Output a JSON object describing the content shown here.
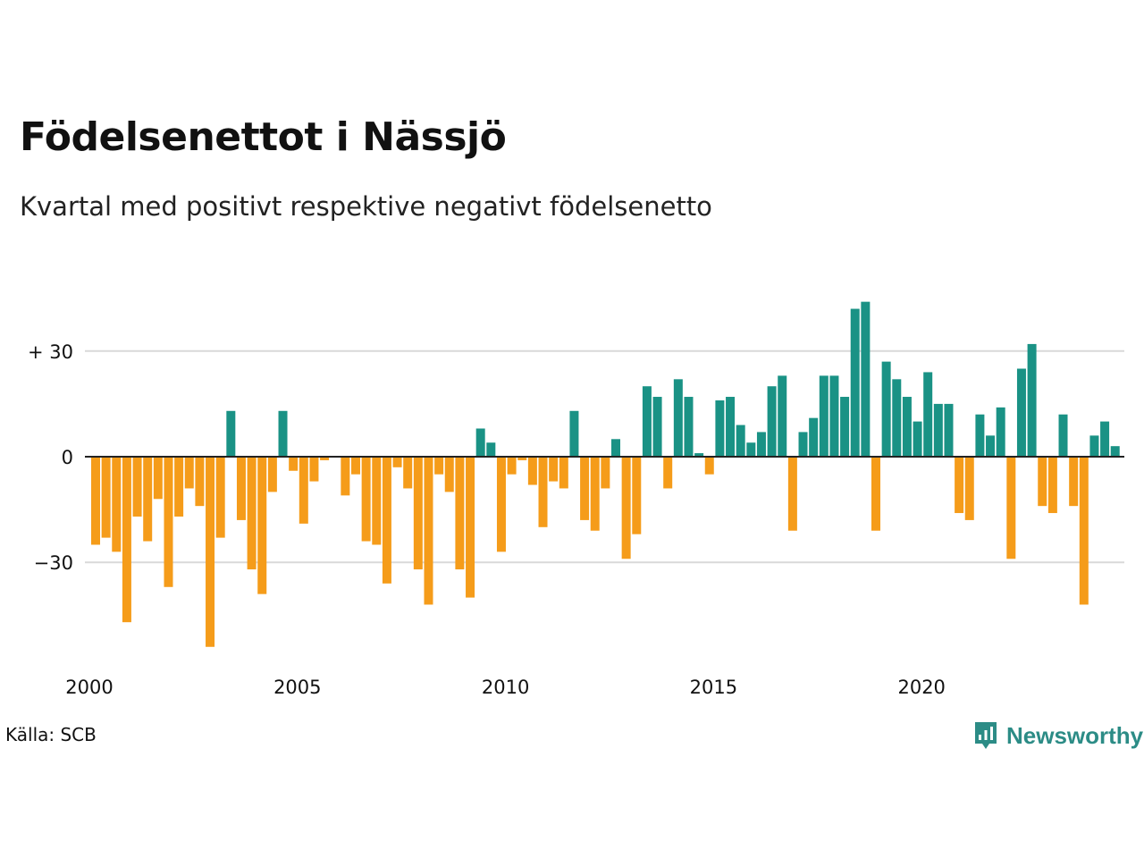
{
  "header": {
    "title": "Födelsenettot i Nässjö",
    "subtitle": "Kvartal med positivt respektive negativt födelsenetto"
  },
  "footer": {
    "source": "Källa: SCB",
    "brand": "Newsworthy",
    "brand_icon": "chart-bubble-icon"
  },
  "colors": {
    "positive": "#1a9285",
    "negative": "#f59c1a",
    "grid": "#d9d9d9",
    "zero_line": "#222222",
    "brand": "#2c8c86"
  },
  "chart_data": {
    "type": "bar",
    "title": "Födelsenettot i Nässjö",
    "subtitle": "Kvartal med positivt respektive negativt födelsenetto",
    "x_start": "2000 Q1",
    "period": "quarter",
    "x_tick_labels": [
      "2000",
      "2005",
      "2010",
      "2015",
      "2020"
    ],
    "y_ticks": [
      {
        "value": 30,
        "label": "+ 30"
      },
      {
        "value": 0,
        "label": "0"
      },
      {
        "value": -30,
        "label": "−30"
      }
    ],
    "ylim": [
      -55,
      45
    ],
    "grid": true,
    "values": [
      -25,
      -23,
      -27,
      -47,
      -17,
      -24,
      -12,
      -37,
      -17,
      -9,
      -14,
      -54,
      -23,
      13,
      -18,
      -32,
      -39,
      -10,
      13,
      -4,
      -19,
      -7,
      -1,
      0,
      -11,
      -5,
      -24,
      -25,
      -36,
      -3,
      -9,
      -32,
      -42,
      -5,
      -10,
      -32,
      -40,
      8,
      4,
      -27,
      -5,
      -1,
      -8,
      -20,
      -7,
      -9,
      13,
      -18,
      -21,
      -9,
      5,
      -29,
      -22,
      20,
      17,
      -9,
      22,
      17,
      1,
      -5,
      16,
      17,
      9,
      4,
      7,
      20,
      23,
      -21,
      7,
      11,
      23,
      23,
      17,
      42,
      44,
      -21,
      27,
      22,
      17,
      10,
      24,
      15,
      15,
      -16,
      -18,
      12,
      6,
      14,
      -29,
      25,
      32,
      -14,
      -16,
      12,
      -14,
      -42,
      6,
      10,
      3
    ]
  }
}
